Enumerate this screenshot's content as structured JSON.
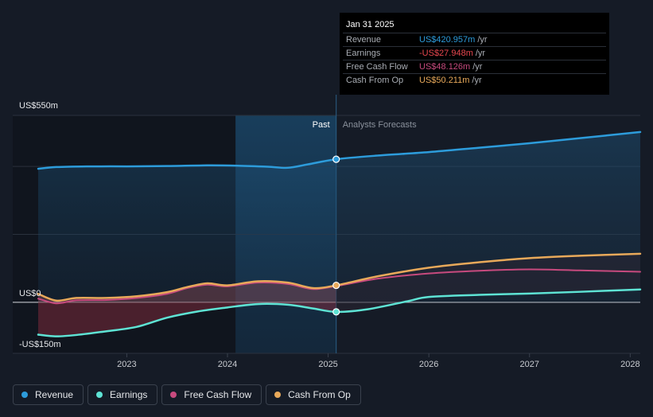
{
  "chart_data": {
    "type": "line",
    "title": "",
    "yaxis_labels": [
      "US$550m",
      "US$0",
      "-US$150m"
    ],
    "ylim": [
      -150,
      550
    ],
    "xaxis_ticks": [
      "2023",
      "2024",
      "2025",
      "2026",
      "2027",
      "2028"
    ],
    "xlim": [
      2022.12,
      2028.1
    ],
    "divider_x": 2025.08,
    "past_start_x": 2024.08,
    "past_label": "Past",
    "forecast_label": "Analysts Forecasts",
    "series": [
      {
        "name": "Revenue",
        "color": "#2d9cdb",
        "x": [
          2022.12,
          2022.3,
          2022.6,
          2023.0,
          2023.4,
          2023.8,
          2024.1,
          2024.4,
          2024.6,
          2024.8,
          2025.08,
          2025.5,
          2026.0,
          2026.5,
          2027.0,
          2027.5,
          2028.1
        ],
        "y": [
          393,
          398,
          400,
          400,
          401,
          403,
          402,
          399,
          396,
          406,
          421,
          432,
          442,
          455,
          468,
          483,
          501
        ]
      },
      {
        "name": "Earnings",
        "color": "#5ee3d4",
        "x": [
          2022.12,
          2022.3,
          2022.5,
          2022.8,
          2023.1,
          2023.4,
          2023.7,
          2024.0,
          2024.3,
          2024.6,
          2024.85,
          2025.08,
          2025.4,
          2025.8,
          2026.0,
          2026.5,
          2027.0,
          2027.5,
          2028.1
        ],
        "y": [
          -95,
          -100,
          -96,
          -85,
          -72,
          -45,
          -27,
          -15,
          -5,
          -7,
          -18,
          -28,
          -20,
          4,
          16,
          22,
          26,
          31,
          38
        ]
      },
      {
        "name": "Free Cash Flow",
        "color": "#c74a7e",
        "x": [
          2022.12,
          2022.3,
          2022.5,
          2022.8,
          2023.1,
          2023.4,
          2023.6,
          2023.8,
          2024.0,
          2024.3,
          2024.6,
          2024.85,
          2025.08,
          2025.5,
          2026.0,
          2026.5,
          2027.0,
          2027.5,
          2028.1
        ],
        "y": [
          11,
          -3,
          6,
          7,
          13,
          25,
          42,
          52,
          47,
          58,
          54,
          39,
          48,
          70,
          85,
          93,
          97,
          94,
          90
        ]
      },
      {
        "name": "Cash From Op",
        "color": "#e8a95a",
        "x": [
          2022.12,
          2022.3,
          2022.5,
          2022.8,
          2023.1,
          2023.4,
          2023.6,
          2023.8,
          2024.0,
          2024.3,
          2024.6,
          2024.85,
          2025.08,
          2025.5,
          2026.0,
          2026.5,
          2027.0,
          2027.5,
          2028.1
        ],
        "y": [
          25,
          5,
          13,
          13,
          18,
          30,
          45,
          56,
          50,
          62,
          58,
          42,
          50,
          77,
          102,
          118,
          130,
          137,
          143
        ]
      }
    ],
    "highlight_x": 2025.08,
    "highlight_series": [
      "Revenue",
      "Earnings",
      "Cash From Op"
    ]
  },
  "tooltip": {
    "date": "Jan 31 2025",
    "rows": [
      {
        "label": "Revenue",
        "value": "US$420.957m",
        "unit": "/yr",
        "color": "#2d9cdb"
      },
      {
        "label": "Earnings",
        "value": "-US$27.948m",
        "unit": "/yr",
        "color": "#e8474f"
      },
      {
        "label": "Free Cash Flow",
        "value": "US$48.126m",
        "unit": "/yr",
        "color": "#c74a7e"
      },
      {
        "label": "Cash From Op",
        "value": "US$50.211m",
        "unit": "/yr",
        "color": "#e8a95a"
      }
    ]
  },
  "legend": [
    {
      "label": "Revenue",
      "color": "#2d9cdb"
    },
    {
      "label": "Earnings",
      "color": "#5ee3d4"
    },
    {
      "label": "Free Cash Flow",
      "color": "#c74a7e"
    },
    {
      "label": "Cash From Op",
      "color": "#e8a95a"
    }
  ]
}
